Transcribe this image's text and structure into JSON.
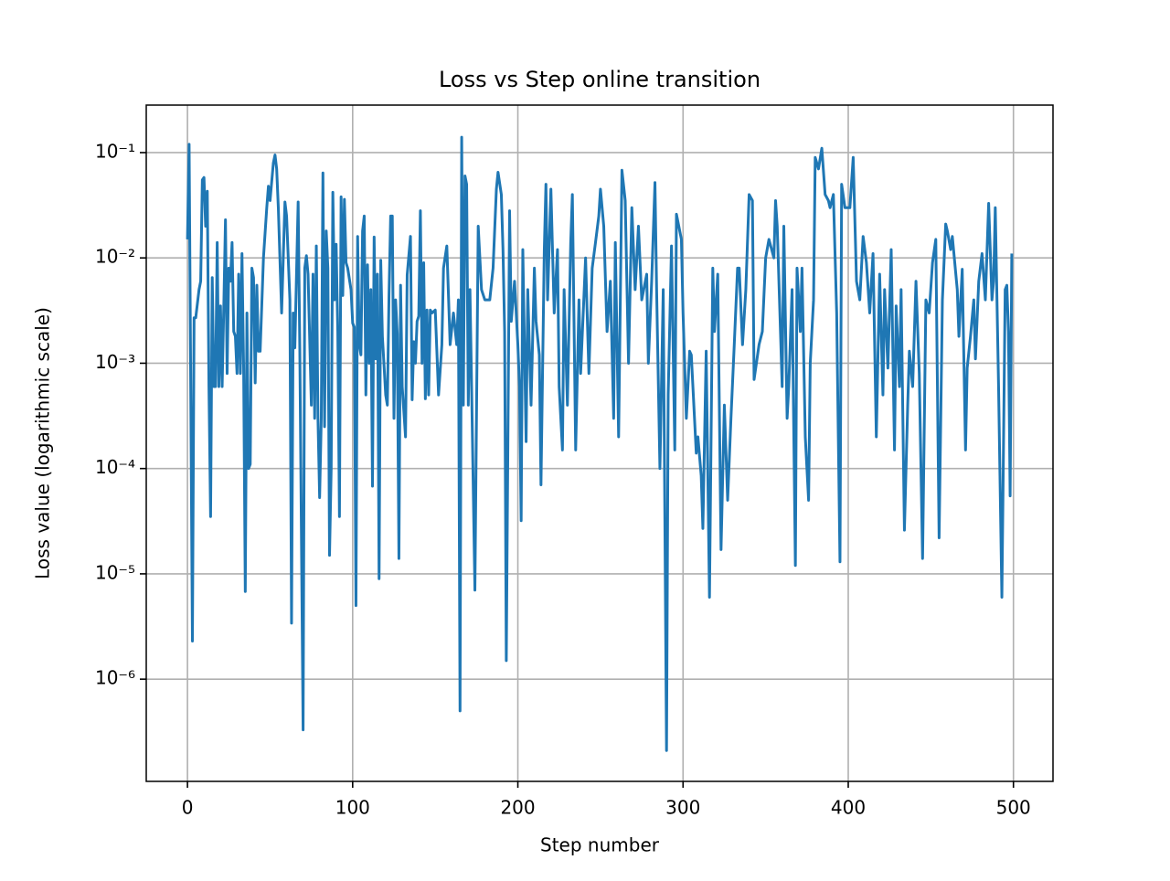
{
  "chart_data": {
    "type": "line",
    "title": "Loss vs Step online transition",
    "x_label": "Step number",
    "y_label": "Loss value (logarithmic scale)",
    "color": "#1f77b4",
    "log_y": true,
    "grid": true,
    "xlim": [
      -24.95,
      523.95
    ],
    "ylim": [
      1.07e-07,
      0.2825
    ],
    "xticks": [
      0,
      100,
      200,
      300,
      400,
      500
    ],
    "yticks": [
      {
        "value": 1e-06,
        "label": "10⁻⁶"
      },
      {
        "value": 1e-05,
        "label": "10⁻⁵"
      },
      {
        "value": 0.0001,
        "label": "10⁻⁴"
      },
      {
        "value": 0.001,
        "label": "10⁻³"
      },
      {
        "value": 0.01,
        "label": "10⁻²"
      },
      {
        "value": 0.1,
        "label": "10⁻¹"
      }
    ],
    "x": [
      0,
      1,
      3,
      4,
      5,
      7,
      8,
      9,
      10,
      11,
      12,
      13,
      14,
      15,
      16,
      17,
      18,
      19,
      20,
      21,
      22,
      23,
      24,
      25,
      26,
      27,
      28,
      29,
      30,
      31,
      32,
      33,
      34,
      35,
      36,
      37,
      38,
      39,
      40,
      41,
      42,
      43,
      44,
      46,
      48,
      49,
      50,
      52,
      53,
      54,
      55,
      57,
      59,
      60,
      62,
      63,
      64,
      65,
      67,
      68,
      70,
      71,
      72,
      73,
      75,
      76,
      77,
      78,
      79,
      80,
      81,
      82,
      83,
      84,
      85,
      86,
      87,
      88,
      89,
      90,
      91,
      92,
      93,
      94,
      95,
      96,
      97,
      99,
      100,
      101,
      102,
      103,
      104,
      105,
      106,
      107,
      108,
      109,
      110,
      111,
      112,
      113,
      114,
      115,
      116,
      117,
      118,
      120,
      121,
      122,
      123,
      124,
      125,
      126,
      127,
      128,
      129,
      130,
      132,
      133,
      135,
      136,
      137,
      138,
      139,
      140,
      141,
      142,
      143,
      144,
      145,
      146,
      147,
      148,
      150,
      152,
      154,
      155,
      157,
      159,
      161,
      163,
      164,
      165,
      166,
      167,
      168,
      169,
      170,
      171,
      172,
      174,
      176,
      178,
      180,
      183,
      185,
      187,
      188,
      190,
      191,
      192,
      193,
      195,
      196,
      198,
      200,
      201,
      202,
      203,
      205,
      206,
      208,
      210,
      211,
      213,
      214,
      216,
      217,
      218,
      220,
      222,
      224,
      225,
      227,
      228,
      230,
      232,
      233,
      235,
      237,
      238,
      241,
      243,
      245,
      247,
      249,
      250,
      252,
      254,
      256,
      258,
      259,
      261,
      263,
      265,
      267,
      269,
      271,
      273,
      275,
      278,
      279,
      281,
      283,
      284,
      286,
      288,
      290,
      291,
      293,
      295,
      296,
      299,
      300,
      302,
      304,
      305,
      308,
      309,
      311,
      312,
      314,
      316,
      318,
      319,
      321,
      323,
      325,
      327,
      329,
      331,
      333,
      334,
      336,
      338,
      340,
      342,
      343,
      346,
      348,
      350,
      352,
      355,
      356,
      357,
      360,
      361,
      363,
      364,
      366,
      368,
      369,
      371,
      372,
      374,
      376,
      377,
      379,
      380,
      382,
      384,
      386,
      388,
      389,
      391,
      393,
      395,
      396,
      398,
      401,
      403,
      405,
      407,
      409,
      411,
      413,
      415,
      417,
      419,
      421,
      422,
      424,
      426,
      428,
      429,
      431,
      432,
      434,
      436,
      437,
      439,
      441,
      443,
      445,
      447,
      449,
      451,
      453,
      455,
      457,
      459,
      460,
      462,
      463,
      466,
      467,
      469,
      471,
      472,
      474,
      476,
      477,
      479,
      481,
      483,
      485,
      487,
      488,
      489,
      491,
      493,
      495,
      496,
      497,
      498,
      499
    ],
    "values": [
      0.015,
      0.12,
      2.3e-06,
      0.0027,
      0.0027,
      0.005,
      0.006,
      0.055,
      0.058,
      0.02,
      0.043,
      0.0006,
      3.5e-05,
      0.0065,
      0.0006,
      0.0006,
      0.014,
      0.0006,
      0.0035,
      0.0006,
      0.0035,
      0.023,
      0.0008,
      0.008,
      0.006,
      0.014,
      0.002,
      0.0018,
      0.0008,
      0.007,
      0.0008,
      0.011,
      0.0009,
      6.8e-06,
      0.003,
      0.0001,
      0.00011,
      0.008,
      0.0065,
      0.00065,
      0.0055,
      0.0013,
      0.0013,
      0.01,
      0.03,
      0.048,
      0.035,
      0.08,
      0.095,
      0.07,
      0.03,
      0.003,
      0.034,
      0.025,
      0.004,
      3.4e-06,
      0.003,
      0.0014,
      0.034,
      0.0014,
      3.3e-07,
      0.008,
      0.0105,
      0.007,
      0.0004,
      0.007,
      0.0003,
      0.013,
      0.0003,
      5.3e-05,
      0.0003,
      0.064,
      0.00025,
      0.018,
      0.008,
      1.5e-05,
      0.0001,
      0.042,
      0.004,
      0.0135,
      0.002,
      3.5e-05,
      0.038,
      0.0044,
      0.036,
      0.009,
      0.008,
      0.005,
      0.0024,
      0.0022,
      5e-06,
      0.016,
      0.0015,
      0.0012,
      0.018,
      0.025,
      0.0005,
      0.0086,
      0.001,
      0.005,
      6.8e-05,
      0.0158,
      0.0011,
      0.007,
      9e-06,
      0.0095,
      0.0018,
      0.0005,
      0.0004,
      0.0044,
      0.025,
      0.025,
      0.0003,
      0.004,
      0.0019,
      1.4e-05,
      0.0055,
      0.0006,
      0.0002,
      0.0069,
      0.016,
      0.00045,
      0.0016,
      0.001,
      0.0025,
      0.0028,
      0.028,
      0.001,
      0.009,
      0.00046,
      0.0032,
      0.0005,
      0.0032,
      0.003,
      0.0032,
      0.0005,
      0.0015,
      0.008,
      0.013,
      0.0015,
      0.003,
      0.0015,
      0.004,
      5e-07,
      0.14,
      0.0004,
      0.06,
      0.05,
      0.0004,
      0.005,
      0.0006,
      7e-06,
      0.02,
      0.005,
      0.004,
      0.004,
      0.008,
      0.045,
      0.065,
      0.04,
      0.012,
      0.002,
      1.5e-06,
      0.028,
      0.0025,
      0.006,
      0.0015,
      0.0006,
      3.2e-05,
      0.012,
      0.00018,
      0.005,
      0.0004,
      0.008,
      0.0025,
      0.0012,
      7e-05,
      0.012,
      0.05,
      0.004,
      0.045,
      0.003,
      0.012,
      0.0006,
      0.00015,
      0.005,
      0.0004,
      0.014,
      0.04,
      0.00015,
      0.004,
      0.0008,
      0.01,
      0.0008,
      0.008,
      0.014,
      0.025,
      0.045,
      0.02,
      0.002,
      0.006,
      0.0003,
      0.014,
      0.0002,
      0.068,
      0.035,
      0.001,
      0.03,
      0.005,
      0.02,
      0.004,
      0.007,
      0.001,
      0.006,
      0.052,
      0.005,
      0.0001,
      0.005,
      2.1e-07,
      0.0005,
      0.013,
      0.00015,
      0.026,
      0.015,
      0.003,
      0.0003,
      0.0013,
      0.0012,
      0.00014,
      0.0002,
      8.5e-05,
      2.7e-05,
      0.0013,
      6e-06,
      0.008,
      0.002,
      0.007,
      1.7e-05,
      0.0004,
      5e-05,
      0.0003,
      0.0015,
      0.008,
      0.008,
      0.0015,
      0.005,
      0.04,
      0.035,
      0.0007,
      0.0015,
      0.002,
      0.01,
      0.015,
      0.01,
      0.035,
      0.02,
      0.0006,
      0.02,
      0.0003,
      0.0006,
      0.005,
      1.2e-05,
      0.008,
      0.002,
      0.008,
      0.0002,
      5e-05,
      0.001,
      0.004,
      0.09,
      0.07,
      0.11,
      0.04,
      0.035,
      0.03,
      0.04,
      0.003,
      1.3e-05,
      0.05,
      0.03,
      0.03,
      0.09,
      0.006,
      0.004,
      0.016,
      0.009,
      0.003,
      0.011,
      0.0002,
      0.007,
      0.0005,
      0.005,
      0.0009,
      0.012,
      0.00015,
      0.0035,
      0.0006,
      0.005,
      2.6e-05,
      0.0004,
      0.0013,
      0.0006,
      0.006,
      0.0008,
      1.4e-05,
      0.004,
      0.003,
      0.009,
      0.015,
      2.2e-05,
      0.004,
      0.021,
      0.018,
      0.012,
      0.016,
      0.005,
      0.0018,
      0.0078,
      0.00015,
      0.0009,
      0.0018,
      0.004,
      0.0011,
      0.006,
      0.011,
      0.004,
      0.033,
      0.004,
      0.006,
      0.03,
      0.0006,
      6e-06,
      0.005,
      0.0055,
      0.002,
      5.5e-05,
      0.011
    ]
  }
}
